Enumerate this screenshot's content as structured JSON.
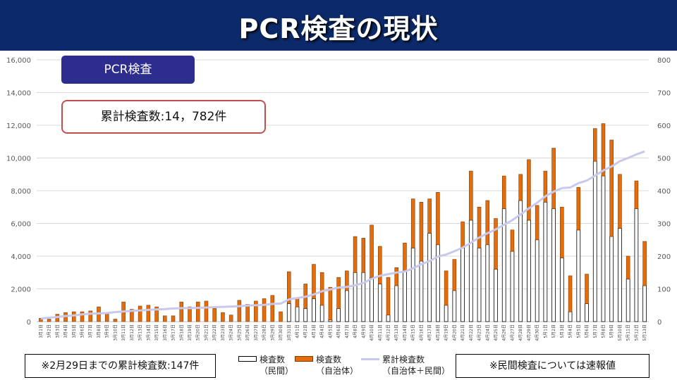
{
  "title": "PCR検査の現状",
  "badge": "PCR検査",
  "total_box": "累計検査数:14，782件",
  "note_left": "※2月29日までの累計検査数:147件",
  "note_right": "※民間検査については速報値",
  "legend": {
    "private": [
      "検査数",
      "（民間）"
    ],
    "local": [
      "検査数",
      "（自治体）"
    ],
    "cumulative": [
      "累計検査数",
      "（自治体＋民間）"
    ]
  },
  "colors": {
    "header": "#0c2a6a",
    "local": "#e46c0a",
    "cumulative": "#c9c9ec",
    "private_fill": "#ffffff"
  },
  "chart_data": {
    "type": "bar",
    "stacked": true,
    "left_axis": {
      "min": 0,
      "max": 16000,
      "ticks": [
        "0",
        "2,000",
        "4,000",
        "6,000",
        "8,000",
        "10,000",
        "12,000",
        "14,000",
        "16,000"
      ]
    },
    "right_axis": {
      "min": 0,
      "max": 800,
      "ticks": [
        "0",
        "100",
        "200",
        "300",
        "400",
        "500",
        "600",
        "700",
        "800"
      ]
    },
    "categories": [
      "3月1日",
      "3月2日",
      "3月3日",
      "3月4日",
      "3月5日",
      "3月6日",
      "3月7日",
      "3月8日",
      "3月9日",
      "3月10日",
      "3月11日",
      "3月12日",
      "3月13日",
      "3月14日",
      "3月15日",
      "3月16日",
      "3月17日",
      "3月18日",
      "3月19日",
      "3月20日",
      "3月21日",
      "3月22日",
      "3月23日",
      "3月24日",
      "3月25日",
      "3月26日",
      "3月27日",
      "3月28日",
      "3月29日",
      "3月30日",
      "3月31日",
      "4月1日",
      "4月2日",
      "4月3日",
      "4月4日",
      "4月5日",
      "4月6日",
      "4月7日",
      "4月8日",
      "4月9日",
      "4月10日",
      "4月11日",
      "4月12日",
      "4月13日",
      "4月14日",
      "4月15日",
      "4月16日",
      "4月17日",
      "4月18日",
      "4月19日",
      "4月20日",
      "4月21日",
      "4月22日",
      "4月23日",
      "4月24日",
      "4月25日",
      "4月26日",
      "4月27日",
      "4月28日",
      "4月29日",
      "4月30日",
      "5月1日",
      "5月2日",
      "5月3日",
      "5月4日",
      "5月5日",
      "5月6日",
      "5月7日",
      "5月8日",
      "5月9日",
      "5月10日",
      "5月11日",
      "5月12日",
      "5月13日"
    ],
    "series": [
      {
        "name": "検査数（民間）",
        "values": [
          0,
          0,
          0,
          0,
          0,
          0,
          0,
          0,
          0,
          0,
          0,
          0,
          0,
          0,
          0,
          0,
          0,
          0,
          0,
          0,
          0,
          0,
          0,
          0,
          0,
          0,
          0,
          0,
          0,
          0,
          1100,
          900,
          800,
          1400,
          1000,
          100,
          800,
          1900,
          3000,
          3000,
          2700,
          2300,
          400,
          2200,
          3100,
          4500,
          3700,
          5400,
          4700,
          1000,
          1900,
          4500,
          6200,
          4500,
          4700,
          3200,
          6900,
          4300,
          7400,
          6200,
          5000,
          7300,
          6900,
          3900,
          600,
          5600,
          1100,
          9800,
          8900,
          5200,
          5700,
          2600,
          6900,
          2200
        ]
      },
      {
        "name": "検査数（自治体）",
        "values": [
          200,
          150,
          450,
          550,
          600,
          600,
          650,
          900,
          500,
          150,
          1200,
          750,
          950,
          1000,
          900,
          350,
          350,
          1200,
          900,
          1200,
          1250,
          800,
          550,
          400,
          1300,
          1050,
          1250,
          1400,
          1600,
          600,
          1950,
          550,
          1500,
          2100,
          2000,
          2000,
          1900,
          1200,
          2200,
          2100,
          3200,
          2300,
          2300,
          1100,
          1700,
          3000,
          3600,
          2100,
          3200,
          2100,
          1900,
          1600,
          3000,
          2500,
          2700,
          3100,
          2000,
          1300,
          1600,
          3700,
          2100,
          1900,
          3700,
          3100,
          2200,
          2600,
          1800,
          2000,
          3200,
          5900,
          3300,
          1400,
          1700,
          2700
        ]
      },
      {
        "name": "累計検査数（自治体＋民間）",
        "axis": "right",
        "values": [
          9,
          12,
          14,
          17,
          19,
          22,
          24,
          25,
          26,
          29,
          31,
          33,
          34,
          36,
          37,
          38,
          40,
          41,
          41,
          42,
          43,
          44,
          45,
          46,
          47,
          49,
          50,
          51,
          54,
          55,
          68,
          72,
          76,
          83,
          93,
          98,
          104,
          106,
          111,
          118,
          131,
          140,
          145,
          150,
          153,
          163,
          175,
          185,
          199,
          205,
          215,
          226,
          241,
          257,
          270,
          282,
          296,
          310,
          328,
          346,
          363,
          383,
          397,
          408,
          410,
          423,
          431,
          446,
          462,
          474,
          490,
          500,
          511,
          520
        ]
      }
    ]
  }
}
